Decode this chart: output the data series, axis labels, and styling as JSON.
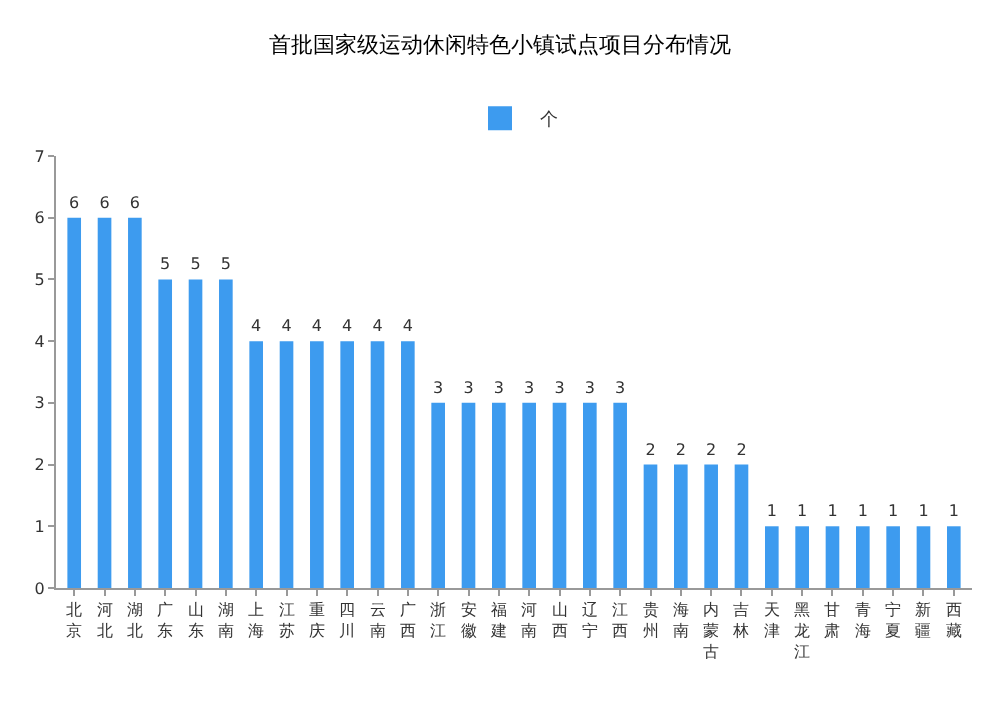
{
  "chart_data": {
    "type": "bar",
    "title": "首批国家级运动休闲特色小镇试点项目分布情况",
    "categories": [
      "北京",
      "河北",
      "湖北",
      "广东",
      "山东",
      "湖南",
      "上海",
      "江苏",
      "重庆",
      "四川",
      "云南",
      "广西",
      "浙江",
      "安徽",
      "福建",
      "河南",
      "山西",
      "辽宁",
      "江西",
      "贵州",
      "海南",
      "内蒙古",
      "吉林",
      "天津",
      "黑龙江",
      "甘肃",
      "青海",
      "宁夏",
      "新疆",
      "西藏"
    ],
    "series": [
      {
        "name": "个",
        "color": "#3d9bef",
        "values": [
          6,
          6,
          6,
          5,
          5,
          5,
          4,
          4,
          4,
          4,
          4,
          4,
          3,
          3,
          3,
          3,
          3,
          3,
          3,
          2,
          2,
          2,
          2,
          1,
          1,
          1,
          1,
          1,
          1,
          1
        ]
      }
    ],
    "ylim": [
      0,
      7
    ],
    "yticks": [
      0,
      1,
      2,
      3,
      4,
      5,
      6,
      7
    ],
    "grid": false,
    "legend": "top",
    "data_labels": true
  }
}
